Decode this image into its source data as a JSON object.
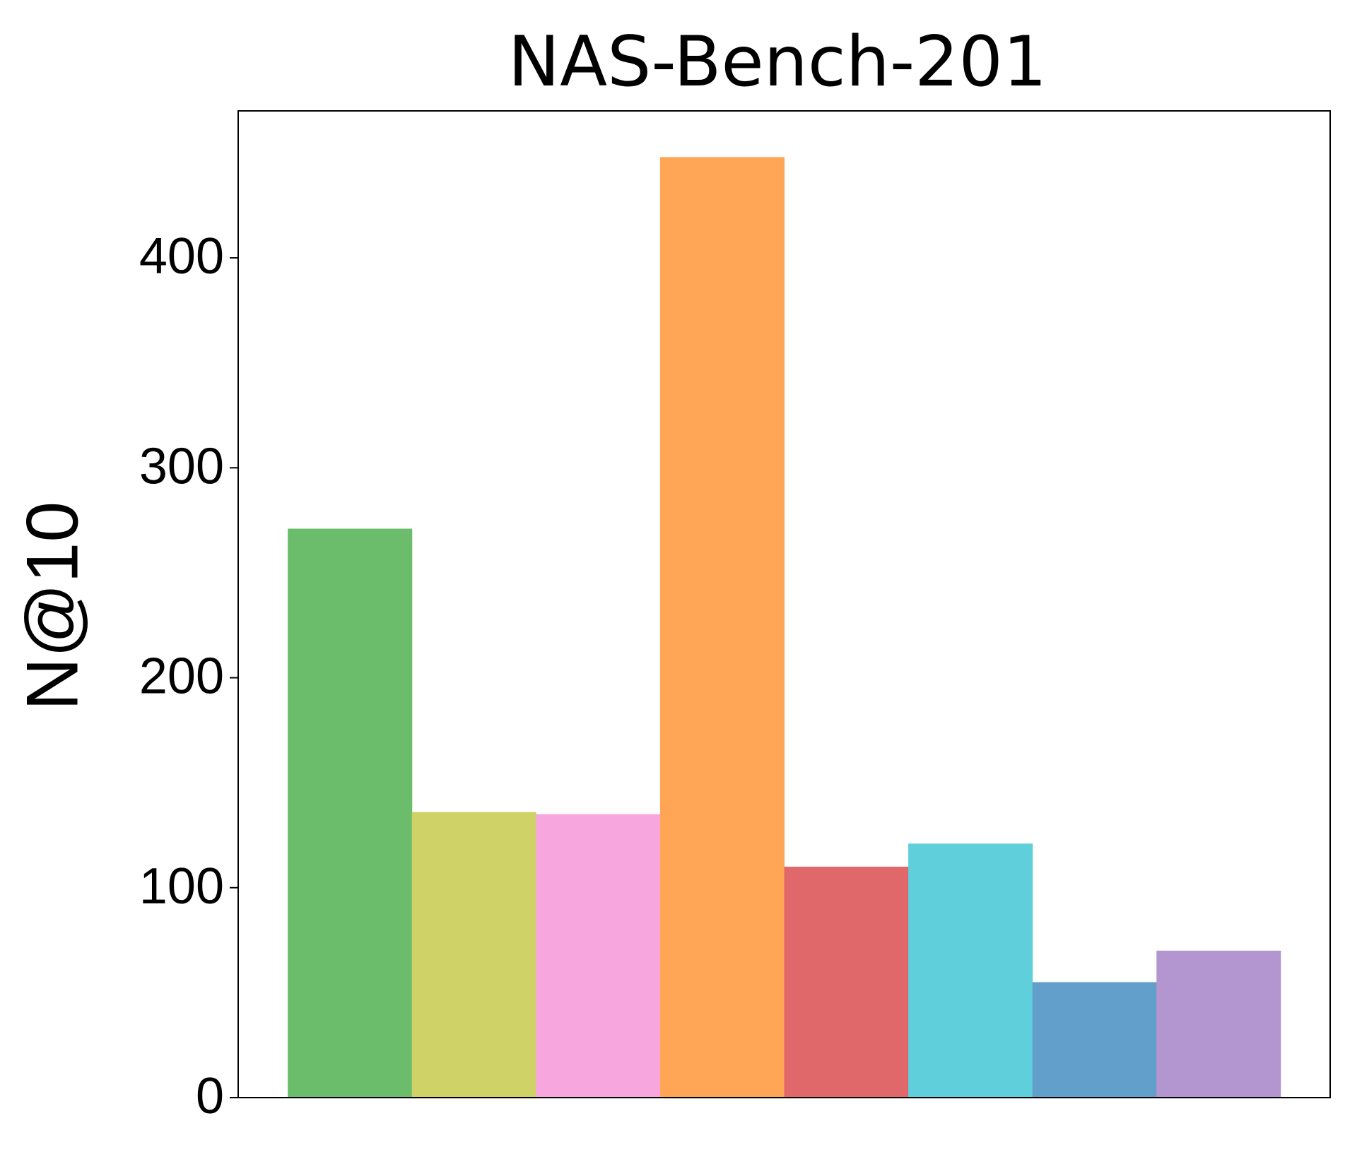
{
  "chart_data": {
    "type": "bar",
    "title": "NAS-Bench-201",
    "y_label": "N@10",
    "categories": [
      null,
      null,
      null,
      null,
      null,
      null,
      null,
      null
    ],
    "values": [
      271,
      136,
      135,
      448,
      110,
      121,
      55,
      70
    ],
    "colors": [
      "#6bbd6c",
      "#cfd266",
      "#f8a6de",
      "#fea656",
      "#e0686a",
      "#60cfdc",
      "#629fcb",
      "#b395cf"
    ],
    "ylim": [
      0,
      470
    ],
    "yticks": [
      0,
      100,
      200,
      300,
      400
    ],
    "grid": false
  }
}
